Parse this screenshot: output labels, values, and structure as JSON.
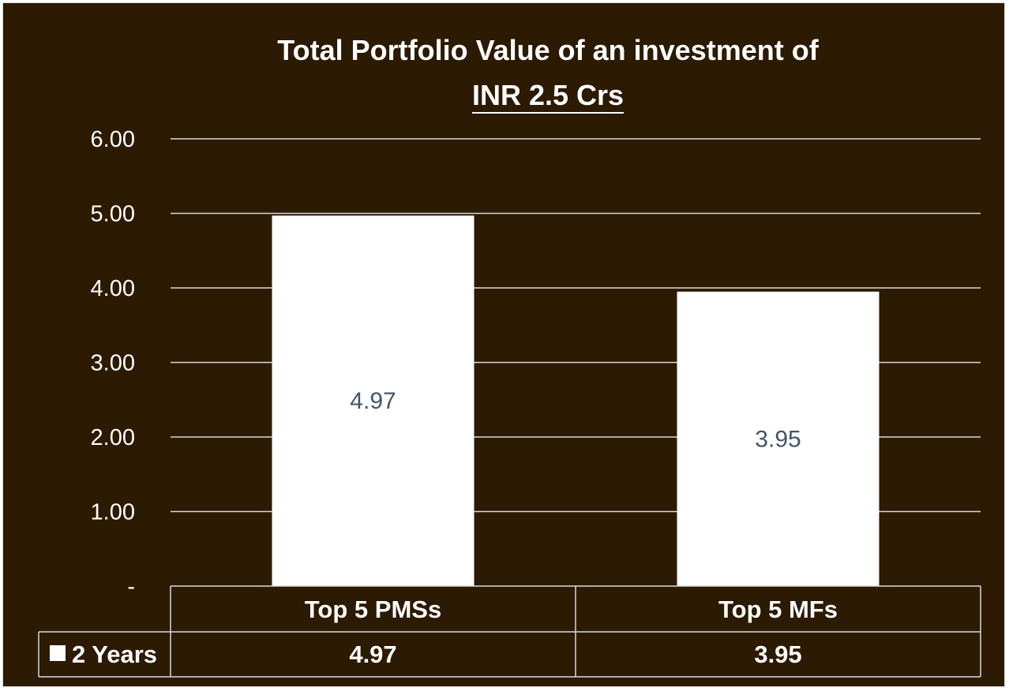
{
  "chart_data": {
    "type": "bar",
    "title": "Total Portfolio Value of an investment of",
    "subtitle": "INR 2.5 Crs",
    "categories": [
      "Top 5 PMSs",
      "Top 5 MFs"
    ],
    "series": [
      {
        "name": "2 Years",
        "values": [
          4.97,
          3.95
        ],
        "color": "#ffffff"
      }
    ],
    "data_labels": [
      "4.97",
      "3.95"
    ],
    "ylim": [
      0,
      6
    ],
    "yticks": [
      0,
      1,
      2,
      3,
      4,
      5,
      6
    ],
    "ytick_labels": [
      "-",
      "1.00",
      "2.00",
      "3.00",
      "4.00",
      "5.00",
      "6.00"
    ],
    "grid": true,
    "legend": "data-table",
    "data_table": {
      "legend_label": "2 Years",
      "values": [
        "4.97",
        "3.95"
      ]
    },
    "background_color": "#2c1a03",
    "label_color": "#44546a"
  }
}
